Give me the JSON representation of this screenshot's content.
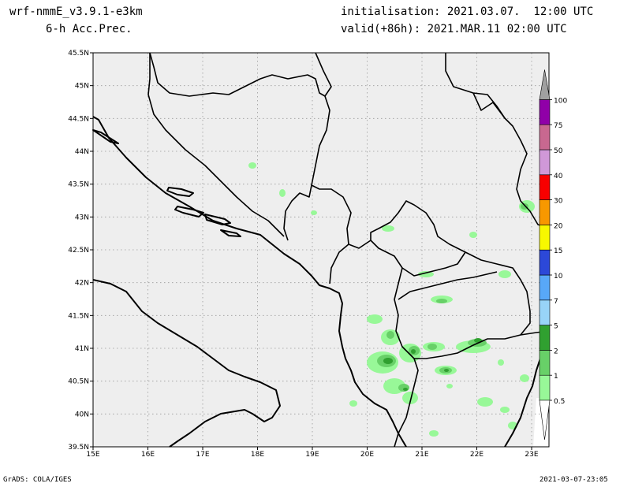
{
  "header": {
    "model": "wrf-nmmE_v3.9.1-e3km",
    "field": "6-h Acc.Prec.",
    "initialisation": "initialisation: 2021.03.07.  12:00 UTC",
    "valid": "valid(+86h): 2021.MAR.11 02:00 UTC"
  },
  "footer": {
    "credit": "GrADS: COLA/IGES",
    "timestamp": "2021-03-07-23:05"
  },
  "map": {
    "lat_labels": [
      "45.5N",
      "45N",
      "44.5N",
      "44N",
      "43.5N",
      "43N",
      "42.5N",
      "42N",
      "41.5N",
      "41N",
      "40.5N",
      "40N",
      "39.5N"
    ],
    "lon_labels": [
      "15E",
      "16E",
      "17E",
      "18E",
      "19E",
      "20E",
      "21E",
      "22E",
      "23E"
    ],
    "land_color": "#eeeeee",
    "border_color": "#000000",
    "grid": true
  },
  "colorbar": {
    "labels": [
      "0.5",
      "1",
      "2",
      "5",
      "7",
      "10",
      "15",
      "20",
      "30",
      "40",
      "50",
      "75",
      "100"
    ],
    "colors": [
      "#98f898",
      "#68d068",
      "#30a030",
      "#98d4f8",
      "#58a8f8",
      "#2c48d8",
      "#f8f800",
      "#f89800",
      "#f80000",
      "#d098d8",
      "#c86890",
      "#9000a8",
      "#a0a0a0"
    ]
  }
}
